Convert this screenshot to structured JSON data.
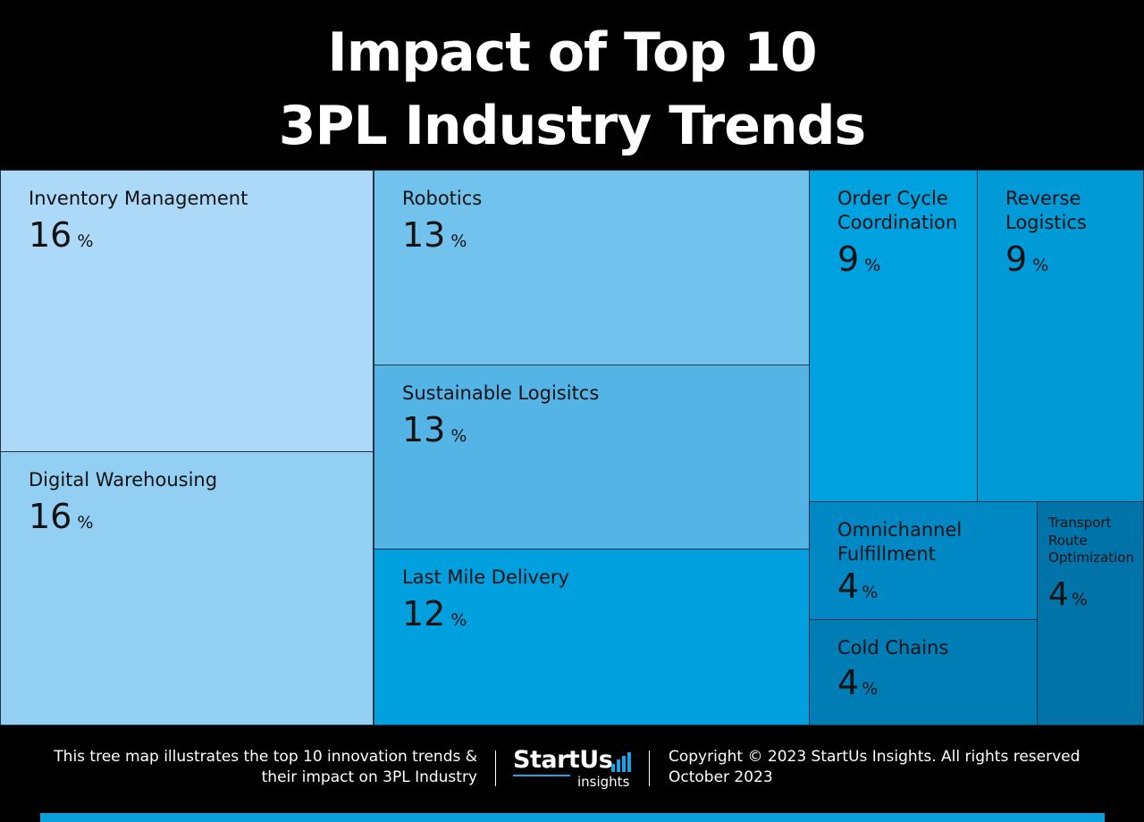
{
  "title": {
    "line1": "Impact of Top 10",
    "line2": "3PL Industry Trends"
  },
  "chart_data": {
    "type": "treemap",
    "unit": "%",
    "items": [
      {
        "label": "Inventory Management",
        "value": 16,
        "color": "#acd9f7"
      },
      {
        "label": "Digital Warehousing",
        "value": 16,
        "color": "#92cff3"
      },
      {
        "label": "Robotics",
        "value": 13,
        "color": "#71c3ee"
      },
      {
        "label": "Sustainable Logisitcs",
        "value": 13,
        "color": "#55b4e6"
      },
      {
        "label": "Last Mile Delivery",
        "value": 12,
        "color": "#009fdd"
      },
      {
        "label": "Order Cycle\nCoordination",
        "value": 9,
        "color": "#00a1df"
      },
      {
        "label": "Reverse\nLogistics",
        "value": 9,
        "color": "#009ad7"
      },
      {
        "label": "Omnichannel\nFulfillment",
        "value": 4,
        "color": "#0088c4"
      },
      {
        "label": "Cold Chains",
        "value": 4,
        "color": "#007db5"
      },
      {
        "label": "Transport\nRoute\nOptimization",
        "value": 4,
        "color": "#0074a8"
      }
    ]
  },
  "footer": {
    "description_line1": "This tree map illustrates the top 10 innovation trends &",
    "description_line2": "their impact on 3PL Industry",
    "logo_text": "StartUs",
    "logo_sub": "insights",
    "copyright": "Copyright © 2023 StartUs Insights. All rights reserved",
    "date": "October 2023"
  },
  "colors": {
    "background": "#000000",
    "accent": "#0aa0dc"
  }
}
